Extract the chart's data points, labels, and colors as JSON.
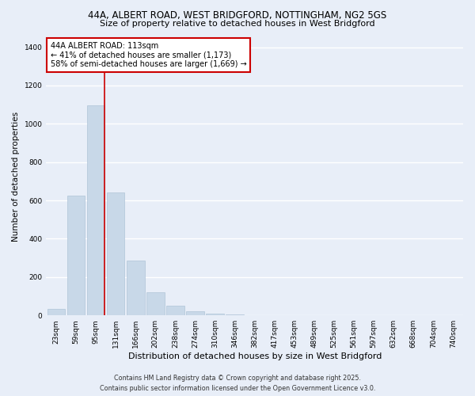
{
  "title_line1": "44A, ALBERT ROAD, WEST BRIDGFORD, NOTTINGHAM, NG2 5GS",
  "title_line2": "Size of property relative to detached houses in West Bridgford",
  "xlabel": "Distribution of detached houses by size in West Bridgford",
  "ylabel": "Number of detached properties",
  "bar_color": "#c8d8e8",
  "bar_edge_color": "#b0c4d8",
  "background_color": "#e8eef8",
  "grid_color": "#ffffff",
  "categories": [
    "23sqm",
    "59sqm",
    "95sqm",
    "131sqm",
    "166sqm",
    "202sqm",
    "238sqm",
    "274sqm",
    "310sqm",
    "346sqm",
    "382sqm",
    "417sqm",
    "453sqm",
    "489sqm",
    "525sqm",
    "561sqm",
    "597sqm",
    "632sqm",
    "668sqm",
    "704sqm",
    "740sqm"
  ],
  "values": [
    35,
    625,
    1095,
    640,
    285,
    120,
    50,
    22,
    8,
    3,
    2,
    0,
    0,
    0,
    0,
    0,
    0,
    0,
    0,
    0,
    0
  ],
  "ylim": [
    0,
    1450
  ],
  "yticks": [
    0,
    200,
    400,
    600,
    800,
    1000,
    1200,
    1400
  ],
  "vline_color": "#cc0000",
  "annotation_text": "44A ALBERT ROAD: 113sqm\n← 41% of detached houses are smaller (1,173)\n58% of semi-detached houses are larger (1,669) →",
  "annotation_box_color": "#ffffff",
  "annotation_box_edge": "#cc0000",
  "footer_line1": "Contains HM Land Registry data © Crown copyright and database right 2025.",
  "footer_line2": "Contains public sector information licensed under the Open Government Licence v3.0."
}
